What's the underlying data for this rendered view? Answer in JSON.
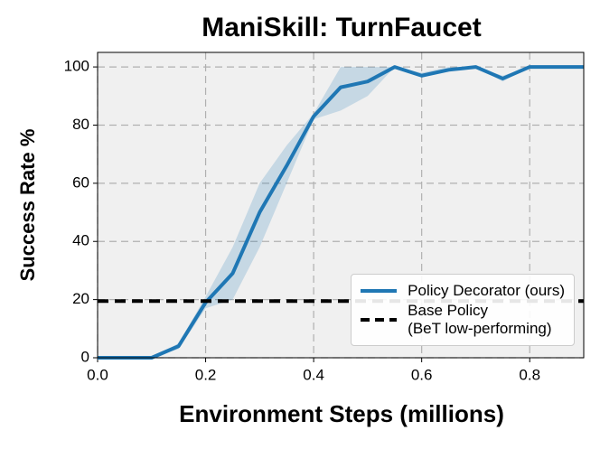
{
  "chart_data": {
    "type": "line",
    "title": "ManiSkill: TurnFaucet",
    "xlabel": "Environment Steps (millions)",
    "ylabel": "Success Rate %",
    "x": [
      0,
      0.05,
      0.1,
      0.15,
      0.2,
      0.25,
      0.3,
      0.35,
      0.4,
      0.45,
      0.5,
      0.55,
      0.6,
      0.65,
      0.7,
      0.75,
      0.8,
      0.85,
      0.9
    ],
    "series": [
      {
        "name": "Policy Decorator (ours)",
        "color": "#1f77b4",
        "values": [
          0,
          0,
          0,
          4,
          19,
          29,
          50,
          66,
          83,
          93,
          95,
          100,
          97,
          99,
          100,
          96,
          100,
          100,
          100
        ],
        "lower": [
          0,
          0,
          0,
          3,
          17,
          20,
          38,
          60,
          82,
          85,
          90,
          100,
          97,
          99,
          100,
          95,
          100,
          100,
          100
        ],
        "upper": [
          0,
          0,
          0,
          5,
          21,
          38,
          60,
          73,
          84,
          100,
          100,
          100,
          98,
          100,
          100,
          97,
          100,
          100,
          100
        ]
      }
    ],
    "hlines": [
      {
        "name": "Base Policy\n(BeT low-performing)",
        "color": "#000000",
        "value": 19.5
      }
    ],
    "xlim": [
      0,
      0.9
    ],
    "ylim": [
      0,
      105
    ],
    "xticks": [
      {
        "value": 0,
        "label": "0.0"
      },
      0.2,
      0.4,
      0.6,
      0.8
    ],
    "yticks": [
      0,
      20,
      40,
      60,
      80,
      100
    ],
    "grid": true,
    "legend": "lower right"
  }
}
